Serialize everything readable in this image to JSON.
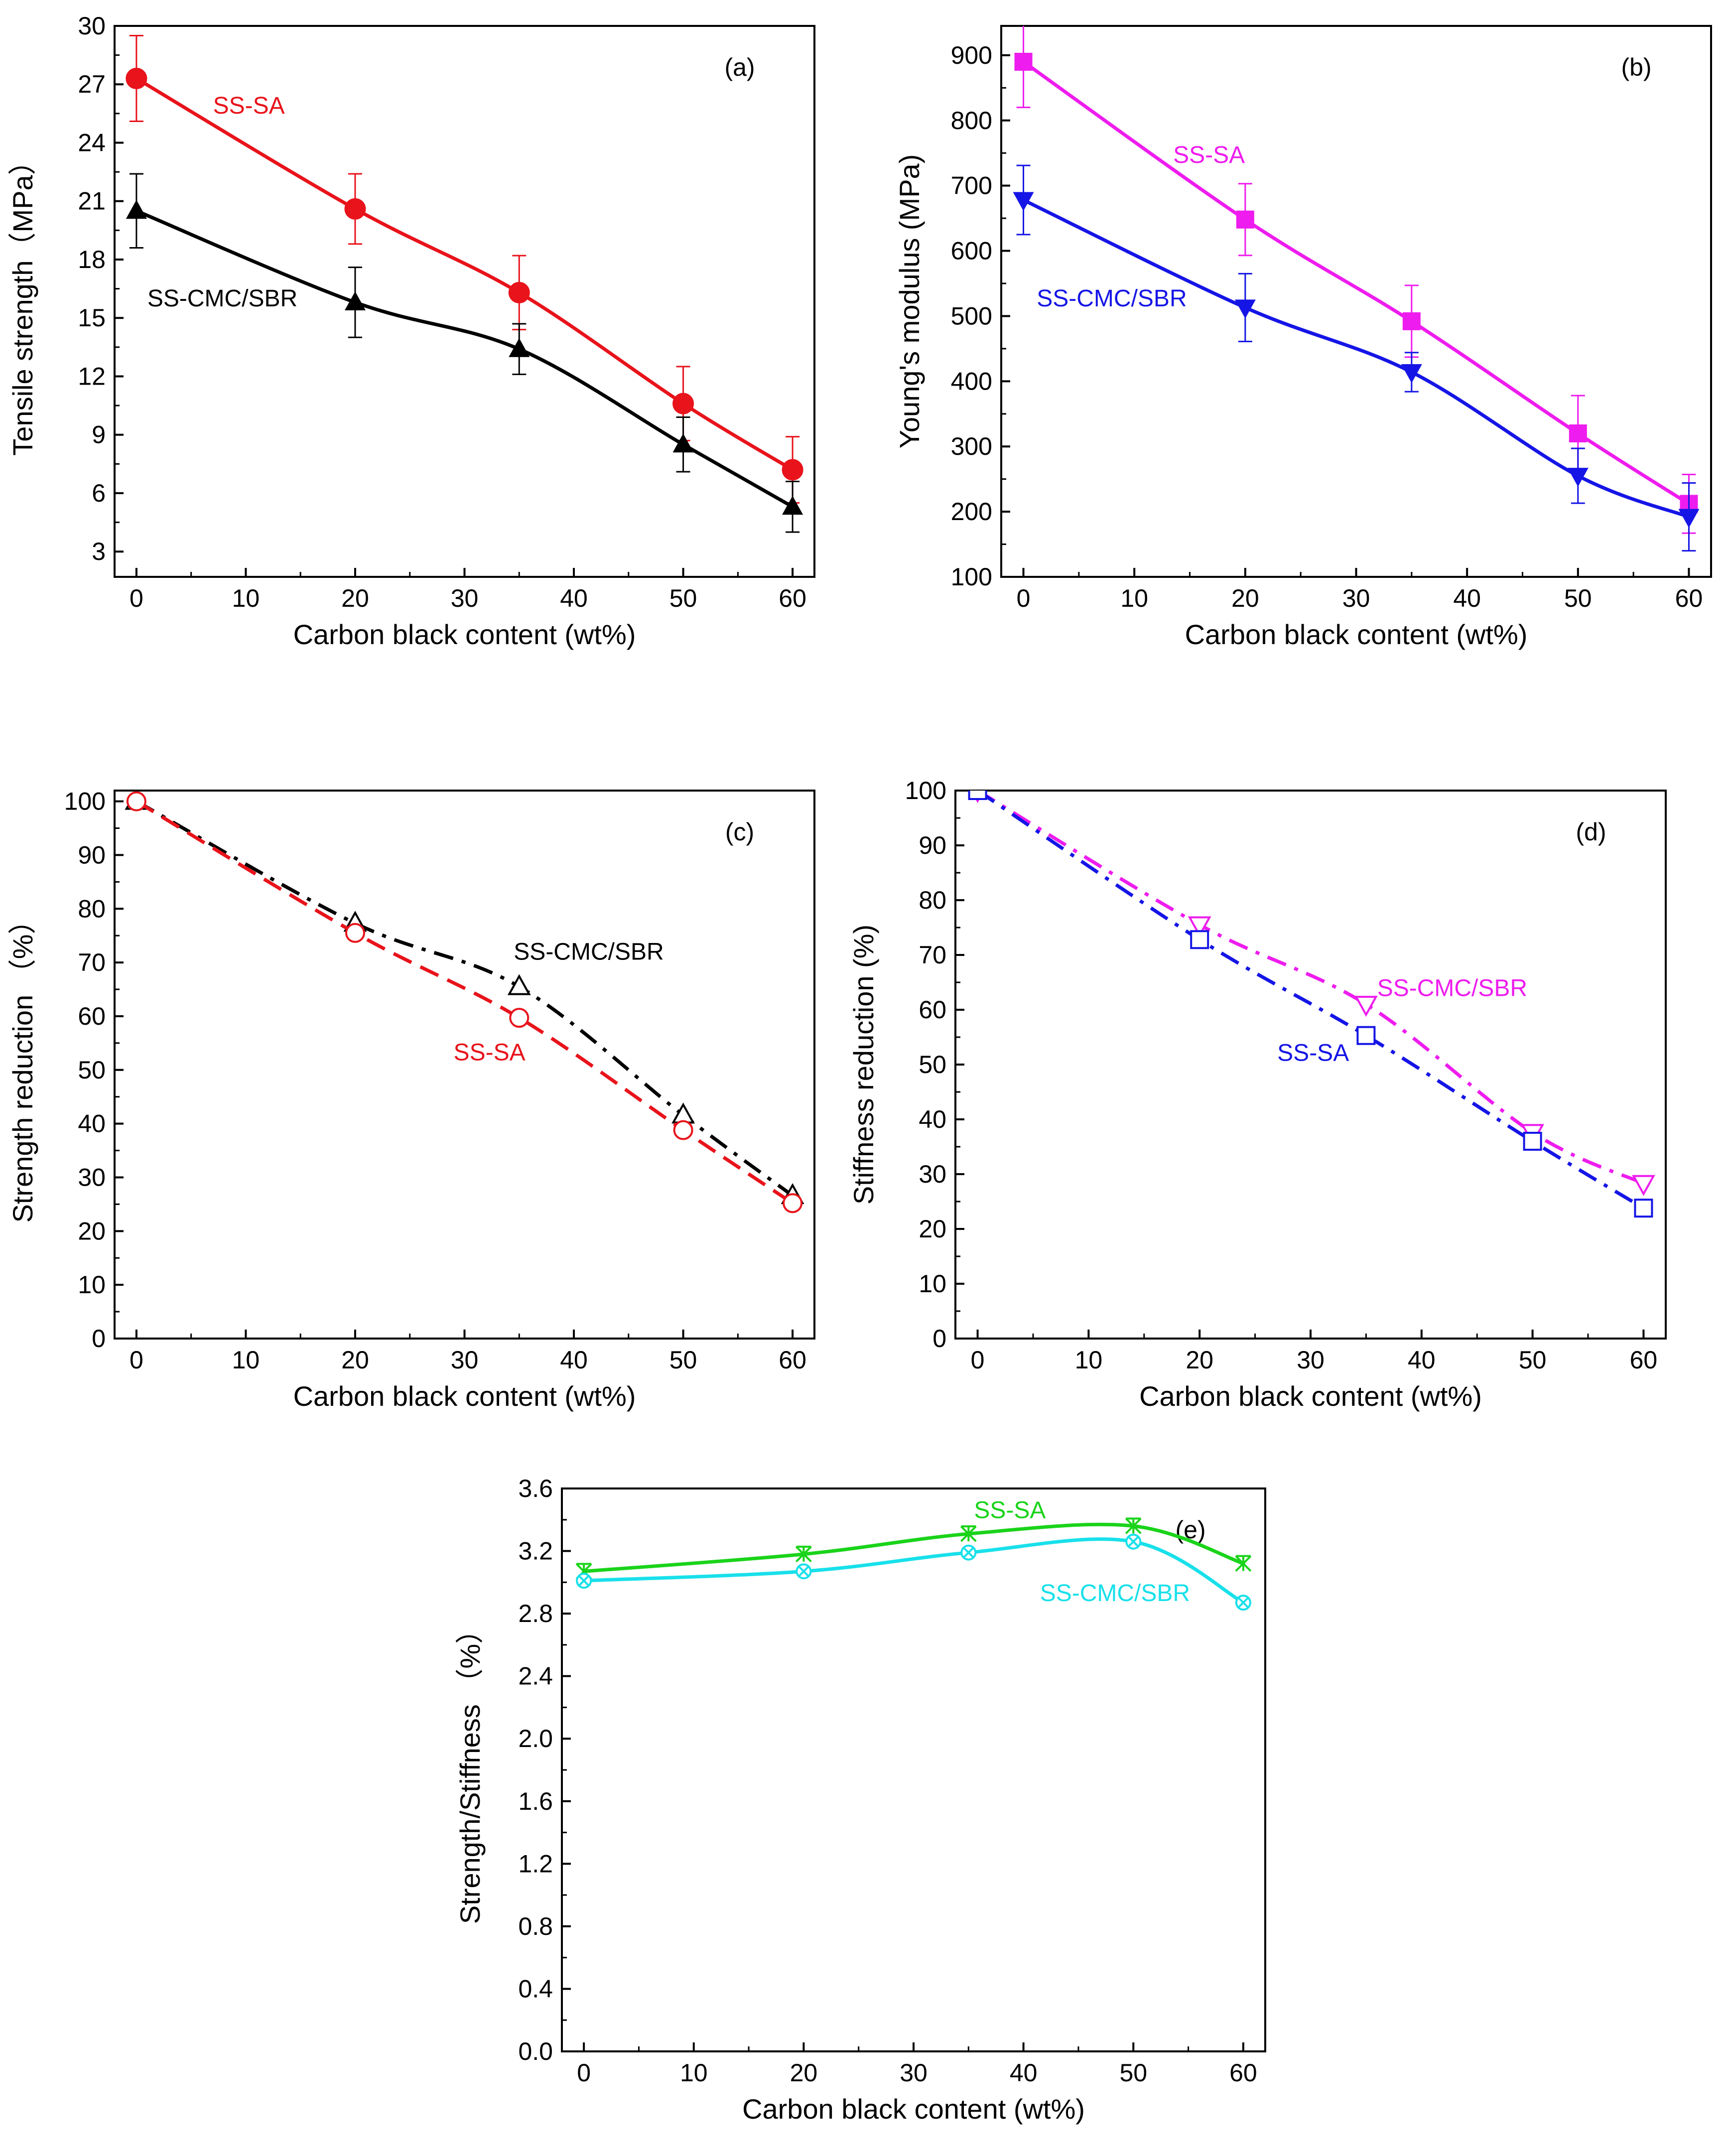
{
  "figure": {
    "description_panels": [
      "a",
      "b",
      "c",
      "d",
      "e"
    ]
  },
  "chart_data": [
    {
      "id": "a",
      "type": "line",
      "panel_label": "(a)",
      "xlabel": "Carbon black content (wt%)",
      "ylabel": "Tensile strength（MPa）",
      "xlim": [
        -2,
        62
      ],
      "ylim": [
        1.7,
        30
      ],
      "xticks": [
        0,
        10,
        20,
        30,
        40,
        50,
        60
      ],
      "yticks": [
        3,
        6,
        9,
        12,
        15,
        18,
        21,
        24,
        27,
        30
      ],
      "x": [
        0,
        20,
        35,
        50,
        60
      ],
      "series": [
        {
          "name": "SS-SA",
          "color": "#e8131b",
          "marker": "circle-filled",
          "line": "solid",
          "values": [
            27.3,
            20.6,
            16.3,
            10.6,
            7.2
          ],
          "errors": [
            2.2,
            1.8,
            1.9,
            1.9,
            1.7
          ],
          "label_anchor": [
            7,
            25.5
          ]
        },
        {
          "name": "SS-CMC/SBR",
          "color": "#000000",
          "marker": "triangle-filled",
          "line": "solid",
          "values": [
            20.5,
            15.8,
            13.4,
            8.5,
            5.3
          ],
          "errors": [
            1.9,
            1.8,
            1.3,
            1.4,
            1.3
          ],
          "label_anchor": [
            1,
            15.6
          ]
        }
      ]
    },
    {
      "id": "b",
      "type": "line",
      "panel_label": "(b)",
      "xlabel": "Carbon black content (wt%)",
      "ylabel": "Young's modulus (MPa)",
      "xlim": [
        -2,
        62
      ],
      "ylim": [
        100,
        945
      ],
      "xticks": [
        0,
        10,
        20,
        30,
        40,
        50,
        60
      ],
      "yticks": [
        100,
        200,
        300,
        400,
        500,
        600,
        700,
        800,
        900
      ],
      "x": [
        0,
        20,
        35,
        50,
        60
      ],
      "series": [
        {
          "name": "SS-SA",
          "color": "#ee1cee",
          "marker": "square-filled",
          "line": "solid",
          "values": [
            890,
            648,
            492,
            320,
            212
          ],
          "errors": [
            70,
            55,
            55,
            58,
            45
          ],
          "label_anchor": [
            13.5,
            735
          ]
        },
        {
          "name": "SS-CMC/SBR",
          "color": "#1515e6",
          "marker": "triangle-down-filled",
          "line": "solid",
          "values": [
            678,
            513,
            414,
            255,
            192
          ],
          "errors": [
            53,
            52,
            30,
            42,
            52
          ],
          "label_anchor": [
            1.2,
            515
          ]
        }
      ]
    },
    {
      "id": "c",
      "type": "line",
      "panel_label": "(c)",
      "xlabel": "Carbon black content (wt%)",
      "ylabel": "Strength reduction （%）",
      "xlim": [
        -2,
        62
      ],
      "ylim": [
        0,
        102
      ],
      "xticks": [
        0,
        10,
        20,
        30,
        40,
        50,
        60
      ],
      "yticks": [
        0,
        10,
        20,
        30,
        40,
        50,
        60,
        70,
        80,
        90,
        100
      ],
      "x": [
        0,
        20,
        35,
        50,
        60
      ],
      "series": [
        {
          "name": "SS-CMC/SBR",
          "color": "#000000",
          "marker": "triangle-open",
          "line": "dashdot",
          "values": [
            100,
            77.3,
            65.5,
            41.6,
            26.6
          ],
          "label_anchor": [
            34.5,
            70.5
          ]
        },
        {
          "name": "SS-SA",
          "color": "#e8131b",
          "marker": "circle-open",
          "line": "dashed",
          "values": [
            100,
            75.5,
            59.7,
            38.8,
            25.2
          ],
          "label_anchor": [
            29,
            51.8
          ]
        }
      ]
    },
    {
      "id": "d",
      "type": "line",
      "panel_label": "(d)",
      "xlabel": "Carbon black content (wt%)",
      "ylabel": "Stiffness reduction (%)",
      "xlim": [
        -2,
        62
      ],
      "ylim": [
        0,
        100
      ],
      "xticks": [
        0,
        10,
        20,
        30,
        40,
        50,
        60
      ],
      "yticks": [
        0,
        10,
        20,
        30,
        40,
        50,
        60,
        70,
        80,
        90,
        100
      ],
      "x": [
        0,
        20,
        35,
        50,
        60
      ],
      "series": [
        {
          "name": "SS-CMC/SBR",
          "color": "#ee1cee",
          "marker": "triangle-down-open",
          "line": "dashdot",
          "values": [
            100,
            75.5,
            61.0,
            37.6,
            28.3
          ],
          "label_anchor": [
            36,
            62.5
          ]
        },
        {
          "name": "SS-SA",
          "color": "#1515e6",
          "marker": "square-open",
          "line": "dashdot",
          "values": [
            100,
            72.8,
            55.3,
            36.0,
            23.8
          ],
          "label_anchor": [
            27,
            50.7
          ]
        }
      ]
    },
    {
      "id": "e",
      "type": "line",
      "panel_label": "(e)",
      "xlabel": "Carbon black content (wt%)",
      "ylabel": "Strength/Stiffness （%）",
      "xlim": [
        -2,
        62
      ],
      "ylim": [
        0,
        3.6
      ],
      "xticks": [
        0,
        10,
        20,
        30,
        40,
        50,
        60
      ],
      "yticks": [
        0.0,
        0.4,
        0.8,
        1.2,
        1.6,
        2.0,
        2.4,
        2.8,
        3.2,
        3.6
      ],
      "ytick_labels": [
        "0.0",
        "0.4",
        "0.8",
        "1.2",
        "1.6",
        "2.0",
        "2.4",
        "2.8",
        "3.2",
        "3.6"
      ],
      "x": [
        0,
        20,
        35,
        50,
        60
      ],
      "series": [
        {
          "name": "SS-SA",
          "color": "#1ad31a",
          "marker": "star-x",
          "line": "solid",
          "values": [
            3.07,
            3.18,
            3.31,
            3.36,
            3.12
          ],
          "label_anchor": [
            35.5,
            3.41
          ]
        },
        {
          "name": "SS-CMC/SBR",
          "color": "#18e0ea",
          "marker": "circle-x",
          "line": "solid",
          "values": [
            3.01,
            3.07,
            3.19,
            3.26,
            2.87
          ],
          "label_anchor": [
            41.5,
            2.88
          ]
        }
      ]
    }
  ]
}
